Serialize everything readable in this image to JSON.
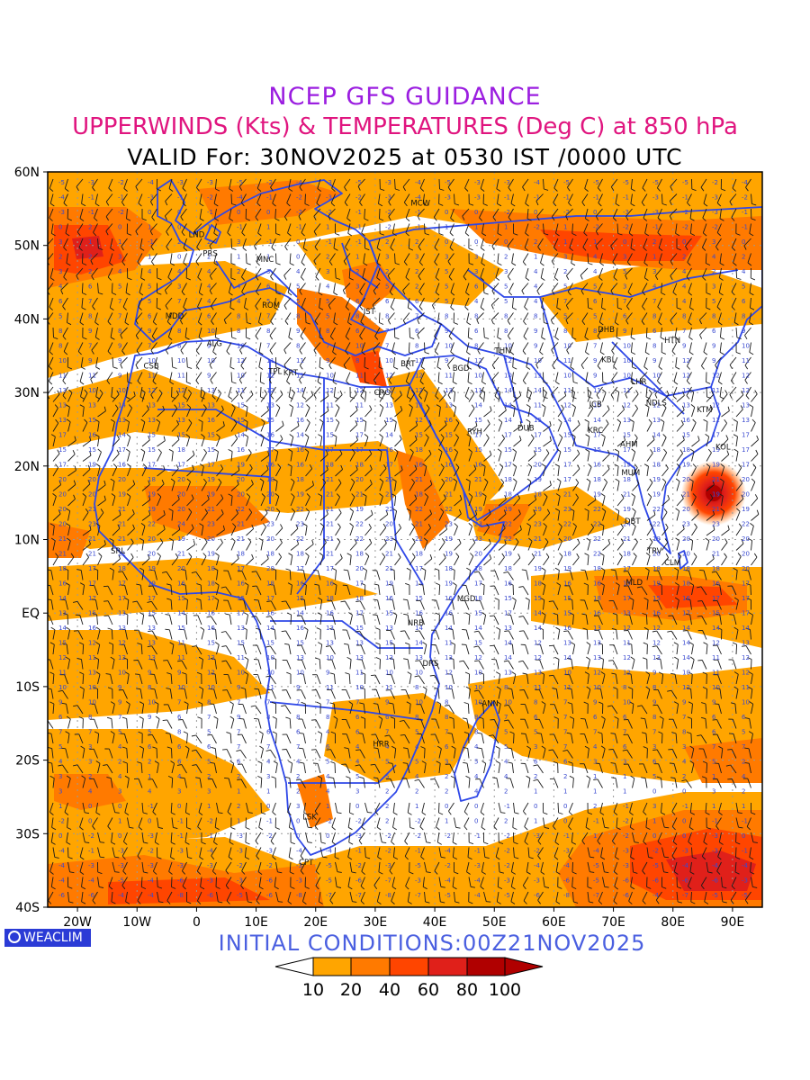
{
  "header": {
    "line1": "NCEP GFS GUIDANCE",
    "line2": "UPPERWINDS (Kts) & TEMPERATURES (Deg C) at 850 hPa",
    "line3": "VALID For: 30NOV2025 at 0530 IST /0000 UTC"
  },
  "footer": {
    "init": "INITIAL CONDITIONS:00Z21NOV2025",
    "brand": "WEACLIM"
  },
  "colors": {
    "c10_20": "#ffa500",
    "c20_40": "#ff7a00",
    "c40_60": "#ff4500",
    "c60_80": "#e0201a",
    "c80_100": "#b00000",
    "borders": "#2f48e8",
    "gridlabel": "#3a4ad0"
  },
  "axes": {
    "lat_labels": [
      "60N",
      "50N",
      "40N",
      "30N",
      "20N",
      "10N",
      "EQ",
      "10S",
      "20S",
      "30S",
      "40S"
    ],
    "lon_labels": [
      "20W",
      "10W",
      "0",
      "10E",
      "20E",
      "30E",
      "40E",
      "50E",
      "60E",
      "70E",
      "80E",
      "90E"
    ]
  },
  "colorbar": {
    "labels": [
      "10",
      "20",
      "40",
      "60",
      "80",
      "100"
    ]
  },
  "stations": [
    {
      "name": "MCW",
      "lon": 37.6,
      "lat": 55.8
    },
    {
      "name": "LND",
      "lon": 0.0,
      "lat": 51.5
    },
    {
      "name": "PRS",
      "lon": 2.3,
      "lat": 48.9
    },
    {
      "name": "MNC",
      "lon": 11.5,
      "lat": 48.1
    },
    {
      "name": "ROM",
      "lon": 12.5,
      "lat": 41.9
    },
    {
      "name": "MDD",
      "lon": -3.7,
      "lat": 40.4
    },
    {
      "name": "IST",
      "lon": 29.0,
      "lat": 41.0
    },
    {
      "name": "ALG",
      "lon": 3.0,
      "lat": 36.7
    },
    {
      "name": "CSB",
      "lon": -7.6,
      "lat": 33.6
    },
    {
      "name": "TPL",
      "lon": 13.2,
      "lat": 32.9
    },
    {
      "name": "KRT",
      "lon": 15.8,
      "lat": 32.7
    },
    {
      "name": "BRT",
      "lon": 35.5,
      "lat": 33.9
    },
    {
      "name": "CRO",
      "lon": 31.2,
      "lat": 30.0
    },
    {
      "name": "BGD",
      "lon": 44.4,
      "lat": 33.3
    },
    {
      "name": "THN",
      "lon": 51.4,
      "lat": 35.7
    },
    {
      "name": "DHB",
      "lon": 68.8,
      "lat": 38.6
    },
    {
      "name": "KBL",
      "lon": 69.2,
      "lat": 34.5
    },
    {
      "name": "HTN",
      "lon": 79.9,
      "lat": 37.1
    },
    {
      "name": "LHR",
      "lon": 74.3,
      "lat": 31.5
    },
    {
      "name": "JCB",
      "lon": 67.0,
      "lat": 28.4
    },
    {
      "name": "NDLS",
      "lon": 77.2,
      "lat": 28.6
    },
    {
      "name": "KTM",
      "lon": 85.3,
      "lat": 27.7
    },
    {
      "name": "RYH",
      "lon": 46.7,
      "lat": 24.7
    },
    {
      "name": "DUB",
      "lon": 55.3,
      "lat": 25.2
    },
    {
      "name": "KRC",
      "lon": 67.0,
      "lat": 24.9
    },
    {
      "name": "AHM",
      "lon": 72.6,
      "lat": 23.0
    },
    {
      "name": "KOL",
      "lon": 88.4,
      "lat": 22.6
    },
    {
      "name": "MUM",
      "lon": 72.9,
      "lat": 19.1
    },
    {
      "name": "DBT",
      "lon": 73.2,
      "lat": 12.5
    },
    {
      "name": "TRV",
      "lon": 76.9,
      "lat": 8.5
    },
    {
      "name": "CLM",
      "lon": 79.9,
      "lat": 6.9
    },
    {
      "name": "MLD",
      "lon": 73.5,
      "lat": 4.2
    },
    {
      "name": "MGD",
      "lon": 45.3,
      "lat": 2.0
    },
    {
      "name": "NRB",
      "lon": 36.8,
      "lat": -1.3
    },
    {
      "name": "DRS",
      "lon": 39.3,
      "lat": -6.8
    },
    {
      "name": "ANN",
      "lon": 49.3,
      "lat": -12.3
    },
    {
      "name": "HRR",
      "lon": 31.0,
      "lat": -17.8
    },
    {
      "name": "LSK",
      "lon": 19.0,
      "lat": -27.7
    },
    {
      "name": "CPT",
      "lon": 18.4,
      "lat": -33.9
    },
    {
      "name": "SRL",
      "lon": -13.2,
      "lat": 8.5
    }
  ]
}
